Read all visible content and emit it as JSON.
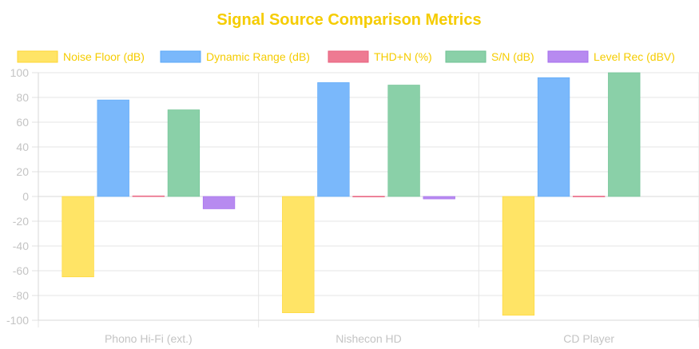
{
  "chart_data": {
    "type": "bar",
    "title": "Signal Source Comparison Metrics",
    "title_color": "#f5cc00",
    "categories": [
      "Phono Hi-Fi (ext.)",
      "Nishecon HD",
      "CD Player"
    ],
    "series": [
      {
        "name": "Noise Floor (dB)",
        "values": [
          -65,
          -94,
          -96
        ],
        "color": "#ffe466",
        "border_color": "#ffd633"
      },
      {
        "name": "Dynamic Range (dB)",
        "values": [
          78,
          92,
          96
        ],
        "color": "#7ab8fb",
        "border_color": "#5aa8fa"
      },
      {
        "name": "THD+N (%)",
        "values": [
          0.5,
          0.2,
          0.3
        ],
        "color": "#ee7a92",
        "border_color": "#e8607e"
      },
      {
        "name": "S/N (dB)",
        "values": [
          70,
          90,
          100
        ],
        "color": "#8ad0a8",
        "border_color": "#6fc293"
      },
      {
        "name": "Level Rec (dBV)",
        "values": [
          -10,
          -2,
          null
        ],
        "color": "#b78af0",
        "border_color": "#a56eee"
      }
    ],
    "legend_text_color": "#f5cc00",
    "ylim": [
      -100,
      100
    ],
    "y_ticks": [
      100,
      80,
      60,
      40,
      20,
      0,
      -20,
      -40,
      -60,
      -80,
      -100
    ],
    "grid": true,
    "legend_position": "top"
  }
}
